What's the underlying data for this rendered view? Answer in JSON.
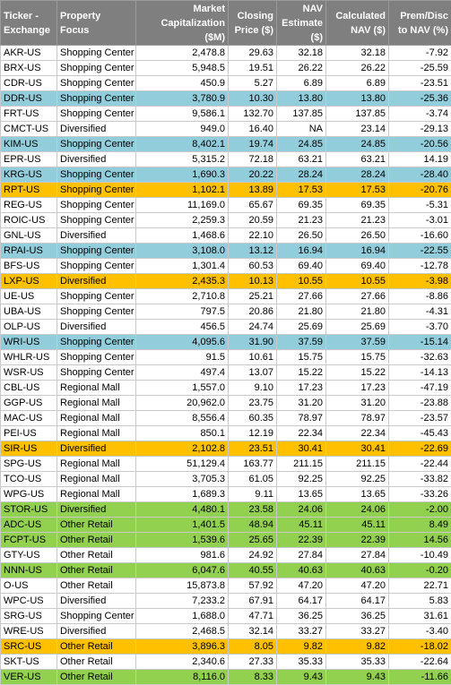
{
  "columns": [
    [
      "Ticker -",
      "Exchange"
    ],
    [
      "Property",
      "Focus"
    ],
    [
      "Market",
      "Capitalization",
      "($M)"
    ],
    [
      "Closing",
      "Price ($)"
    ],
    [
      "NAV",
      "Estimate",
      "($)"
    ],
    [
      "Calculated",
      "NAV ($)"
    ],
    [
      "Prem/Disc",
      "to NAV (%)"
    ]
  ],
  "colors": {
    "header": "#7f7f7f",
    "blue": "#92cddc",
    "orange": "#ffc000",
    "green": "#92d050"
  },
  "rows": [
    {
      "hl": "",
      "cells": [
        "AKR-US",
        "Shopping Center",
        "2,478.8",
        "29.63",
        "32.18",
        "32.18",
        "-7.92"
      ]
    },
    {
      "hl": "",
      "cells": [
        "BRX-US",
        "Shopping Center",
        "5,948.5",
        "19.51",
        "26.22",
        "26.22",
        "-25.59"
      ]
    },
    {
      "hl": "",
      "cells": [
        "CDR-US",
        "Shopping Center",
        "450.9",
        "5.27",
        "6.89",
        "6.89",
        "-23.51"
      ]
    },
    {
      "hl": "blue",
      "cells": [
        "DDR-US",
        "Shopping Center",
        "3,780.9",
        "10.30",
        "13.80",
        "13.80",
        "-25.36"
      ]
    },
    {
      "hl": "",
      "cells": [
        "FRT-US",
        "Shopping Center",
        "9,586.1",
        "132.70",
        "137.85",
        "137.85",
        "-3.74"
      ]
    },
    {
      "hl": "",
      "cells": [
        "CMCT-US",
        "Diversified",
        "949.0",
        "16.40",
        "NA",
        "23.14",
        "-29.13"
      ]
    },
    {
      "hl": "blue",
      "cells": [
        "KIM-US",
        "Shopping Center",
        "8,402.1",
        "19.74",
        "24.85",
        "24.85",
        "-20.56"
      ]
    },
    {
      "hl": "",
      "cells": [
        "EPR-US",
        "Diversified",
        "5,315.2",
        "72.18",
        "63.21",
        "63.21",
        "14.19"
      ]
    },
    {
      "hl": "blue",
      "cells": [
        "KRG-US",
        "Shopping Center",
        "1,690.3",
        "20.22",
        "28.24",
        "28.24",
        "-28.40"
      ]
    },
    {
      "hl": "orange",
      "cells": [
        "RPT-US",
        "Shopping Center",
        "1,102.1",
        "13.89",
        "17.53",
        "17.53",
        "-20.76"
      ]
    },
    {
      "hl": "",
      "cells": [
        "REG-US",
        "Shopping Center",
        "11,169.0",
        "65.67",
        "69.35",
        "69.35",
        "-5.31"
      ]
    },
    {
      "hl": "",
      "cells": [
        "ROIC-US",
        "Shopping Center",
        "2,259.3",
        "20.59",
        "21.23",
        "21.23",
        "-3.01"
      ]
    },
    {
      "hl": "",
      "cells": [
        "GNL-US",
        "Diversified",
        "1,468.6",
        "22.10",
        "26.50",
        "26.50",
        "-16.60"
      ]
    },
    {
      "hl": "blue",
      "cells": [
        "RPAI-US",
        "Shopping Center",
        "3,108.0",
        "13.12",
        "16.94",
        "16.94",
        "-22.55"
      ]
    },
    {
      "hl": "",
      "cells": [
        "BFS-US",
        "Shopping Center",
        "1,301.4",
        "60.53",
        "69.40",
        "69.40",
        "-12.78"
      ]
    },
    {
      "hl": "orange",
      "cells": [
        "LXP-US",
        "Diversified",
        "2,435.3",
        "10.13",
        "10.55",
        "10.55",
        "-3.98"
      ]
    },
    {
      "hl": "",
      "cells": [
        "UE-US",
        "Shopping Center",
        "2,710.8",
        "25.21",
        "27.66",
        "27.66",
        "-8.86"
      ]
    },
    {
      "hl": "",
      "cells": [
        "UBA-US",
        "Shopping Center",
        "797.5",
        "20.86",
        "21.80",
        "21.80",
        "-4.31"
      ]
    },
    {
      "hl": "",
      "cells": [
        "OLP-US",
        "Diversified",
        "456.5",
        "24.74",
        "25.69",
        "25.69",
        "-3.70"
      ]
    },
    {
      "hl": "blue",
      "cells": [
        "WRI-US",
        "Shopping Center",
        "4,095.6",
        "31.90",
        "37.59",
        "37.59",
        "-15.14"
      ]
    },
    {
      "hl": "",
      "cells": [
        "WHLR-US",
        "Shopping Center",
        "91.5",
        "10.61",
        "15.75",
        "15.75",
        "-32.63"
      ]
    },
    {
      "hl": "",
      "cells": [
        "WSR-US",
        "Shopping Center",
        "497.4",
        "13.07",
        "15.22",
        "15.22",
        "-14.13"
      ]
    },
    {
      "hl": "",
      "cells": [
        "CBL-US",
        "Regional Mall",
        "1,557.0",
        "9.10",
        "17.23",
        "17.23",
        "-47.19"
      ]
    },
    {
      "hl": "",
      "cells": [
        "GGP-US",
        "Regional Mall",
        "20,962.0",
        "23.75",
        "31.20",
        "31.20",
        "-23.88"
      ]
    },
    {
      "hl": "",
      "cells": [
        "MAC-US",
        "Regional Mall",
        "8,556.4",
        "60.35",
        "78.97",
        "78.97",
        "-23.57"
      ]
    },
    {
      "hl": "",
      "cells": [
        "PEI-US",
        "Regional Mall",
        "850.1",
        "12.19",
        "22.34",
        "22.34",
        "-45.43"
      ]
    },
    {
      "hl": "orange",
      "cells": [
        "SIR-US",
        "Diversified",
        "2,102.8",
        "23.51",
        "30.41",
        "30.41",
        "-22.69"
      ]
    },
    {
      "hl": "",
      "cells": [
        "SPG-US",
        "Regional Mall",
        "51,129.4",
        "163.77",
        "211.15",
        "211.15",
        "-22.44"
      ]
    },
    {
      "hl": "",
      "cells": [
        "TCO-US",
        "Regional Mall",
        "3,705.3",
        "61.05",
        "92.25",
        "92.25",
        "-33.82"
      ]
    },
    {
      "hl": "",
      "cells": [
        "WPG-US",
        "Regional Mall",
        "1,689.3",
        "9.11",
        "13.65",
        "13.65",
        "-33.26"
      ]
    },
    {
      "hl": "green",
      "cells": [
        "STOR-US",
        "Diversified",
        "4,480.1",
        "23.58",
        "24.06",
        "24.06",
        "-2.00"
      ]
    },
    {
      "hl": "green",
      "cells": [
        "ADC-US",
        "Other Retail",
        "1,401.5",
        "48.94",
        "45.11",
        "45.11",
        "8.49"
      ]
    },
    {
      "hl": "green",
      "cells": [
        "FCPT-US",
        "Other Retail",
        "1,539.6",
        "25.65",
        "22.39",
        "22.39",
        "14.56"
      ]
    },
    {
      "hl": "",
      "cells": [
        "GTY-US",
        "Other Retail",
        "981.6",
        "24.92",
        "27.84",
        "27.84",
        "-10.49"
      ]
    },
    {
      "hl": "green",
      "cells": [
        "NNN-US",
        "Other Retail",
        "6,047.6",
        "40.55",
        "40.63",
        "40.63",
        "-0.20"
      ]
    },
    {
      "hl": "",
      "cells": [
        "O-US",
        "Other Retail",
        "15,873.8",
        "57.92",
        "47.20",
        "47.20",
        "22.71"
      ]
    },
    {
      "hl": "",
      "cells": [
        "WPC-US",
        "Diversified",
        "7,233.2",
        "67.91",
        "64.17",
        "64.17",
        "5.83"
      ]
    },
    {
      "hl": "",
      "cells": [
        "SRG-US",
        "Shopping Center",
        "1,688.0",
        "47.71",
        "36.25",
        "36.25",
        "31.61"
      ]
    },
    {
      "hl": "",
      "cells": [
        "WRE-US",
        "Diversified",
        "2,468.5",
        "32.14",
        "33.27",
        "33.27",
        "-3.40"
      ]
    },
    {
      "hl": "orange",
      "cells": [
        "SRC-US",
        "Other Retail",
        "3,896.3",
        "8.05",
        "9.82",
        "9.82",
        "-18.02"
      ]
    },
    {
      "hl": "",
      "cells": [
        "SKT-US",
        "Other Retail",
        "2,340.6",
        "27.33",
        "35.33",
        "35.33",
        "-22.64"
      ]
    },
    {
      "hl": "green",
      "cells": [
        "VER-US",
        "Other Retail",
        "8,116.0",
        "8.33",
        "9.43",
        "9.43",
        "-11.66"
      ]
    }
  ]
}
